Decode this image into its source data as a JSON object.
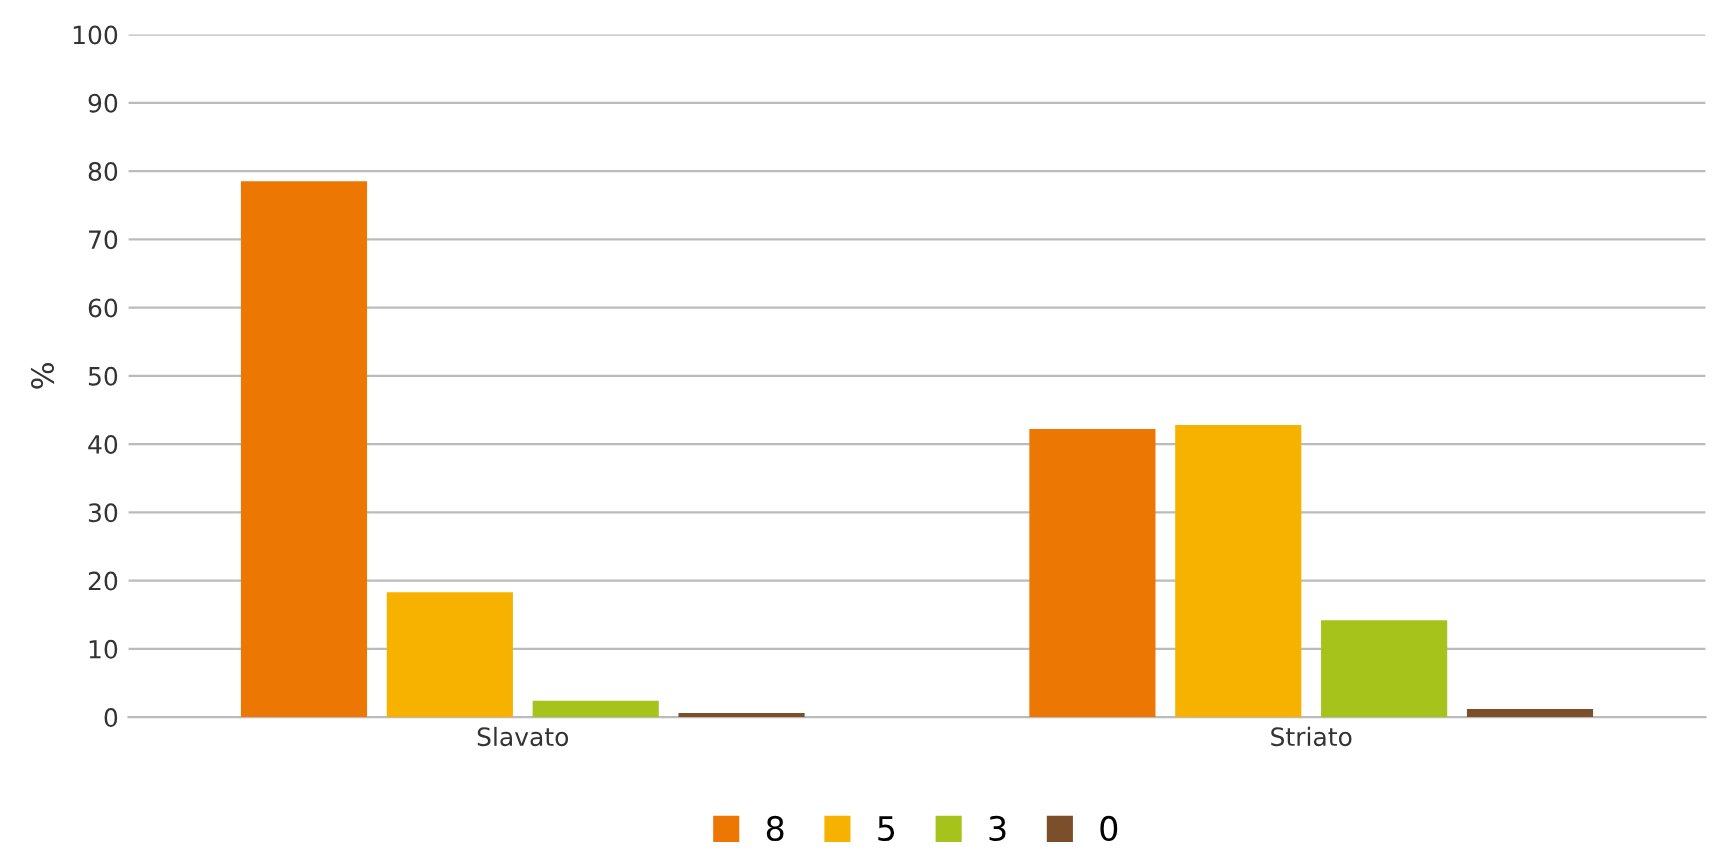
{
  "chart_data": {
    "type": "bar",
    "ylabel": "%",
    "categories": [
      "Slavato",
      "Striato"
    ],
    "series": [
      {
        "name": "8",
        "color": "#ed7703",
        "values": [
          78.5,
          42.2
        ]
      },
      {
        "name": "5",
        "color": "#f7b200",
        "values": [
          18.3,
          42.8
        ]
      },
      {
        "name": "3",
        "color": "#a5c31a",
        "values": [
          2.4,
          14.2
        ]
      },
      {
        "name": "0",
        "color": "#7b4f2a",
        "values": [
          0.6,
          1.2
        ]
      }
    ],
    "ylim": [
      0,
      100
    ],
    "yticks": [
      0,
      10,
      20,
      30,
      40,
      50,
      60,
      70,
      80,
      90,
      100
    ],
    "grid": "y",
    "legend": "bottom"
  }
}
